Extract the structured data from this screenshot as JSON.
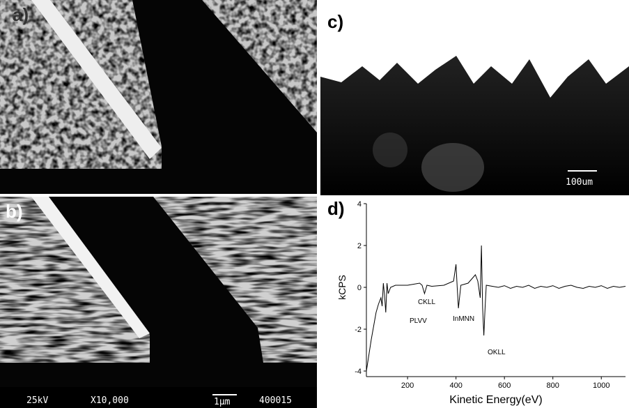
{
  "panels": {
    "a": {
      "label": "a)"
    },
    "b": {
      "label": "b)",
      "caption": [
        "25kV",
        "X10,000",
        "1μm",
        "400015"
      ]
    },
    "c": {
      "label": "c)",
      "scale_bar": "100um"
    }
  },
  "chart_data": {
    "type": "line",
    "label": "d)",
    "xlabel": "Kinetic Energy(eV)",
    "ylabel": "kCPS",
    "x": [
      30,
      50,
      70,
      80,
      90,
      95,
      100,
      105,
      110,
      115,
      120,
      130,
      150,
      200,
      250,
      260,
      270,
      280,
      300,
      350,
      390,
      400,
      405,
      410,
      420,
      450,
      480,
      490,
      500,
      505,
      510,
      515,
      520,
      525,
      550,
      575,
      600,
      625,
      650,
      675,
      700,
      725,
      750,
      775,
      800,
      825,
      850,
      875,
      900,
      925,
      950,
      975,
      1000,
      1025,
      1050,
      1075,
      1100
    ],
    "y": [
      -4,
      -2.5,
      -1.2,
      -0.8,
      -0.5,
      -0.9,
      0.2,
      -0.4,
      -1.2,
      0.2,
      -0.3,
      0,
      0.1,
      0.1,
      0.2,
      0.1,
      -0.3,
      0.1,
      0.05,
      0.1,
      0.3,
      1.1,
      0,
      -1,
      0.1,
      0.2,
      0.6,
      0.3,
      -0.5,
      2,
      -1,
      -2.3,
      -1,
      0.1,
      0.05,
      0,
      0.08,
      -0.05,
      0.05,
      0,
      0.1,
      -0.05,
      0.05,
      0,
      0.08,
      -0.05,
      0.05,
      0.1,
      0,
      -0.05,
      0.05,
      0,
      0.08,
      -0.05,
      0.05,
      0,
      0.05
    ],
    "color": "#000000",
    "xlim": [
      30,
      1100
    ],
    "xticks": [
      200,
      400,
      600,
      800,
      1000
    ],
    "ylim": [
      -4,
      4
    ],
    "yticks": [
      -4,
      -2,
      0,
      2,
      4
    ],
    "annotations": [
      "PLVV",
      "CKLL",
      "InMNN",
      "OKLL"
    ]
  }
}
